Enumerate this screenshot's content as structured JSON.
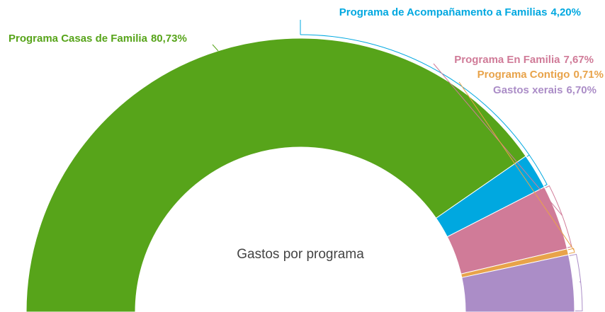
{
  "chart_data": {
    "type": "semi-donut",
    "title": "Gastos por programa",
    "categories": [
      "Programa Casas de Familia",
      "Programa de Acompañamento a Familias",
      "Programa En Familia",
      "Programa Contigo",
      "Gastos xerais"
    ],
    "values": [
      80.73,
      4.2,
      7.67,
      0.71,
      6.7
    ],
    "value_labels": [
      "80,73%",
      "4,20%",
      "7,67%",
      "0,71%",
      "6,70%"
    ],
    "colors": [
      "#57a41a",
      "#00a8e0",
      "#d07b98",
      "#e8a34a",
      "#ab8dc7"
    ]
  }
}
